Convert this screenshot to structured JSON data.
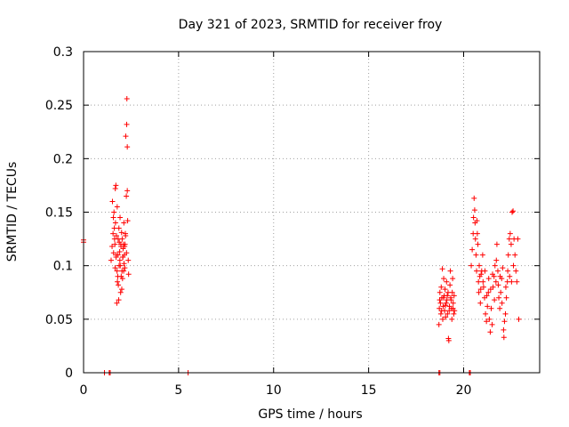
{
  "chart_data": {
    "type": "scatter",
    "title": "Day 321 of 2023, SRMTID for receiver froy",
    "xlabel": "GPS time / hours",
    "ylabel": "SRMTID / TECUs",
    "xlim": [
      0,
      24
    ],
    "ylim": [
      0,
      0.3
    ],
    "xticks": [
      0,
      5,
      10,
      15,
      20
    ],
    "yticks": [
      0,
      0.05,
      0.1,
      0.15,
      0.2,
      0.25,
      0.3
    ],
    "xtick_labels": [
      "0",
      "5",
      "10",
      "15",
      "20"
    ],
    "ytick_labels": [
      "0",
      "0.05",
      "0.1",
      "0.15",
      "0.2",
      "0.25",
      "0.3"
    ],
    "grid": true,
    "marker": "+",
    "color": "#ff0000",
    "points": [
      [
        0.0,
        0.124
      ],
      [
        0.0,
        0.122
      ],
      [
        1.1,
        0.0
      ],
      [
        1.35,
        0.0
      ],
      [
        1.4,
        0.0
      ],
      [
        5.5,
        0.0
      ],
      [
        18.7,
        0.0
      ],
      [
        18.75,
        0.0
      ],
      [
        20.3,
        0.0
      ],
      [
        20.35,
        0.0
      ],
      [
        1.45,
        0.105
      ],
      [
        1.5,
        0.118
      ],
      [
        1.52,
        0.16
      ],
      [
        1.55,
        0.13
      ],
      [
        1.57,
        0.145
      ],
      [
        1.6,
        0.15
      ],
      [
        1.62,
        0.135
      ],
      [
        1.65,
        0.12
      ],
      [
        1.67,
        0.172
      ],
      [
        1.7,
        0.175
      ],
      [
        1.72,
        0.11
      ],
      [
        1.75,
        0.065
      ],
      [
        1.77,
        0.155
      ],
      [
        1.8,
        0.09
      ],
      [
        1.82,
        0.125
      ],
      [
        1.85,
        0.068
      ],
      [
        1.87,
        0.1
      ],
      [
        1.9,
        0.113
      ],
      [
        1.92,
        0.145
      ],
      [
        1.95,
        0.075
      ],
      [
        1.97,
        0.118
      ],
      [
        2.0,
        0.131
      ],
      [
        2.02,
        0.095
      ],
      [
        2.05,
        0.088
      ],
      [
        2.07,
        0.108
      ],
      [
        2.1,
        0.12
      ],
      [
        2.12,
        0.14
      ],
      [
        2.15,
        0.11
      ],
      [
        2.17,
        0.098
      ],
      [
        2.2,
        0.13
      ],
      [
        2.22,
        0.221
      ],
      [
        2.25,
        0.165
      ],
      [
        2.27,
        0.232
      ],
      [
        2.28,
        0.256
      ],
      [
        2.3,
        0.211
      ],
      [
        2.3,
        0.17
      ],
      [
        2.32,
        0.142
      ],
      [
        2.35,
        0.105
      ],
      [
        2.37,
        0.092
      ],
      [
        1.68,
        0.14
      ],
      [
        1.73,
        0.128
      ],
      [
        1.78,
        0.085
      ],
      [
        1.83,
        0.082
      ],
      [
        1.88,
        0.122
      ],
      [
        1.93,
        0.1
      ],
      [
        1.98,
        0.09
      ],
      [
        2.03,
        0.125
      ],
      [
        2.08,
        0.116
      ],
      [
        2.13,
        0.102
      ],
      [
        2.18,
        0.12
      ],
      [
        1.58,
        0.112
      ],
      [
        1.63,
        0.125
      ],
      [
        1.66,
        0.098
      ],
      [
        1.71,
        0.108
      ],
      [
        1.76,
        0.095
      ],
      [
        1.81,
        0.11
      ],
      [
        1.86,
        0.135
      ],
      [
        1.91,
        0.105
      ],
      [
        1.96,
        0.12
      ],
      [
        2.01,
        0.078
      ],
      [
        2.06,
        0.108
      ],
      [
        2.11,
        0.095
      ],
      [
        2.16,
        0.118
      ],
      [
        2.21,
        0.128
      ],
      [
        2.26,
        0.112
      ],
      [
        18.7,
        0.045
      ],
      [
        18.72,
        0.06
      ],
      [
        18.75,
        0.075
      ],
      [
        18.78,
        0.065
      ],
      [
        18.8,
        0.055
      ],
      [
        18.82,
        0.08
      ],
      [
        18.85,
        0.07
      ],
      [
        18.88,
        0.097
      ],
      [
        18.9,
        0.05
      ],
      [
        18.92,
        0.062
      ],
      [
        18.95,
        0.088
      ],
      [
        18.98,
        0.072
      ],
      [
        19.0,
        0.058
      ],
      [
        19.02,
        0.078
      ],
      [
        19.05,
        0.052
      ],
      [
        19.08,
        0.065
      ],
      [
        19.1,
        0.085
      ],
      [
        19.12,
        0.068
      ],
      [
        19.15,
        0.055
      ],
      [
        19.18,
        0.075
      ],
      [
        19.2,
        0.032
      ],
      [
        19.22,
        0.03
      ],
      [
        19.25,
        0.062
      ],
      [
        19.28,
        0.082
      ],
      [
        19.3,
        0.095
      ],
      [
        19.32,
        0.07
      ],
      [
        19.35,
        0.06
      ],
      [
        19.38,
        0.05
      ],
      [
        19.4,
        0.075
      ],
      [
        19.42,
        0.088
      ],
      [
        19.45,
        0.065
      ],
      [
        19.48,
        0.055
      ],
      [
        19.5,
        0.072
      ],
      [
        19.52,
        0.058
      ],
      [
        18.74,
        0.068
      ],
      [
        18.84,
        0.058
      ],
      [
        18.94,
        0.07
      ],
      [
        19.04,
        0.063
      ],
      [
        19.14,
        0.072
      ],
      [
        19.24,
        0.058
      ],
      [
        19.34,
        0.068
      ],
      [
        19.44,
        0.06
      ],
      [
        20.4,
        0.1
      ],
      [
        20.45,
        0.115
      ],
      [
        20.5,
        0.13
      ],
      [
        20.52,
        0.145
      ],
      [
        20.55,
        0.163
      ],
      [
        20.58,
        0.152
      ],
      [
        20.6,
        0.14
      ],
      [
        20.62,
        0.125
      ],
      [
        20.65,
        0.11
      ],
      [
        20.68,
        0.095
      ],
      [
        20.7,
        0.142
      ],
      [
        20.72,
        0.13
      ],
      [
        20.75,
        0.12
      ],
      [
        20.78,
        0.085
      ],
      [
        20.8,
        0.075
      ],
      [
        20.82,
        0.1
      ],
      [
        20.85,
        0.09
      ],
      [
        20.88,
        0.065
      ],
      [
        20.9,
        0.078
      ],
      [
        20.95,
        0.095
      ],
      [
        21.0,
        0.11
      ],
      [
        21.05,
        0.08
      ],
      [
        21.1,
        0.07
      ],
      [
        21.15,
        0.055
      ],
      [
        21.2,
        0.048
      ],
      [
        21.25,
        0.062
      ],
      [
        21.3,
        0.075
      ],
      [
        21.35,
        0.05
      ],
      [
        21.4,
        0.038
      ],
      [
        21.45,
        0.06
      ],
      [
        21.5,
        0.045
      ],
      [
        21.55,
        0.08
      ],
      [
        21.6,
        0.09
      ],
      [
        21.65,
        0.1
      ],
      [
        21.7,
        0.085
      ],
      [
        21.75,
        0.12
      ],
      [
        21.8,
        0.095
      ],
      [
        21.85,
        0.07
      ],
      [
        21.9,
        0.06
      ],
      [
        21.95,
        0.075
      ],
      [
        22.0,
        0.088
      ],
      [
        22.05,
        0.098
      ],
      [
        22.1,
        0.04
      ],
      [
        22.12,
        0.033
      ],
      [
        22.15,
        0.048
      ],
      [
        22.2,
        0.055
      ],
      [
        22.25,
        0.07
      ],
      [
        22.3,
        0.085
      ],
      [
        22.35,
        0.11
      ],
      [
        22.4,
        0.125
      ],
      [
        22.45,
        0.13
      ],
      [
        22.5,
        0.12
      ],
      [
        22.55,
        0.15
      ],
      [
        22.6,
        0.151
      ],
      [
        22.65,
        0.125
      ],
      [
        22.7,
        0.11
      ],
      [
        22.75,
        0.095
      ],
      [
        22.8,
        0.085
      ],
      [
        22.85,
        0.125
      ],
      [
        22.9,
        0.05
      ],
      [
        20.92,
        0.092
      ],
      [
        21.02,
        0.085
      ],
      [
        21.12,
        0.095
      ],
      [
        21.22,
        0.072
      ],
      [
        21.32,
        0.088
      ],
      [
        21.42,
        0.078
      ],
      [
        21.52,
        0.092
      ],
      [
        21.62,
        0.068
      ],
      [
        21.72,
        0.105
      ],
      [
        21.82,
        0.082
      ],
      [
        21.92,
        0.09
      ],
      [
        22.02,
        0.065
      ],
      [
        22.22,
        0.08
      ],
      [
        22.32,
        0.095
      ],
      [
        22.42,
        0.09
      ],
      [
        22.52,
        0.085
      ],
      [
        22.62,
        0.1
      ]
    ]
  }
}
